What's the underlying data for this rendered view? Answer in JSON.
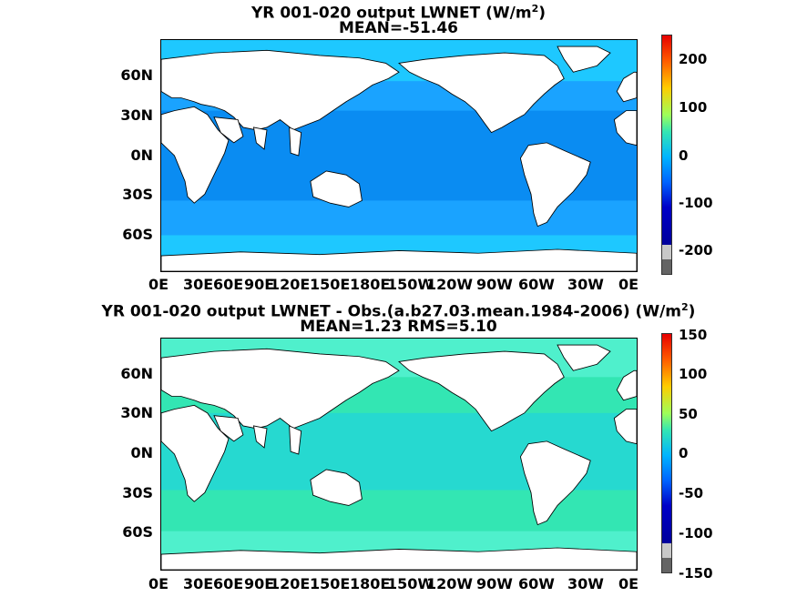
{
  "panels": [
    {
      "title_main": "YR 001-020 output  LWNET (W/m",
      "title_sup": "2",
      "title_end": ")",
      "subtitle": "MEAN=-51.46",
      "colorbar_ticks": [
        "200",
        "100",
        "0",
        "-100",
        "-200"
      ],
      "ocean_colors": {
        "base": "#1aa3ff",
        "polar": "#1ec8ff",
        "tropic_band": "#0a8cf2"
      }
    },
    {
      "title_main": "YR 001-020 output LWNET - Obs.(a.b27.03.mean.1984-2006) (W/m",
      "title_sup": "2",
      "title_end": ")",
      "subtitle": "MEAN=1.23 RMS=5.10",
      "colorbar_ticks": [
        "150",
        "100",
        "50",
        "0",
        "-50",
        "-100",
        "-150"
      ],
      "ocean_colors": {
        "base": "#33e6b3",
        "polar": "#4ff0cc",
        "tropic_band": "#26d9d0"
      }
    }
  ],
  "lat_labels": [
    "60N",
    "30N",
    "0N",
    "30S",
    "60S"
  ],
  "lon_labels": [
    "0E",
    "30E",
    "60E",
    "90E",
    "120E",
    "150E",
    "180E",
    "150W",
    "120W",
    "90W",
    "60W",
    "30W",
    "0E"
  ]
}
